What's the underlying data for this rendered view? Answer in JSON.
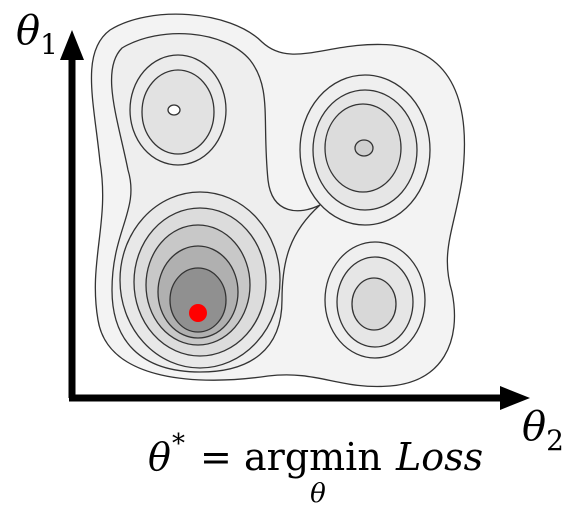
{
  "y_axis": {
    "symbol": "θ",
    "subscript": "1"
  },
  "x_axis": {
    "symbol": "θ",
    "subscript": "2"
  },
  "formula": {
    "lhs": "θ",
    "superscript": "*",
    "equals": "=",
    "operator": "argmin",
    "operator_subscript": "θ",
    "rhs": "Loss"
  }
}
